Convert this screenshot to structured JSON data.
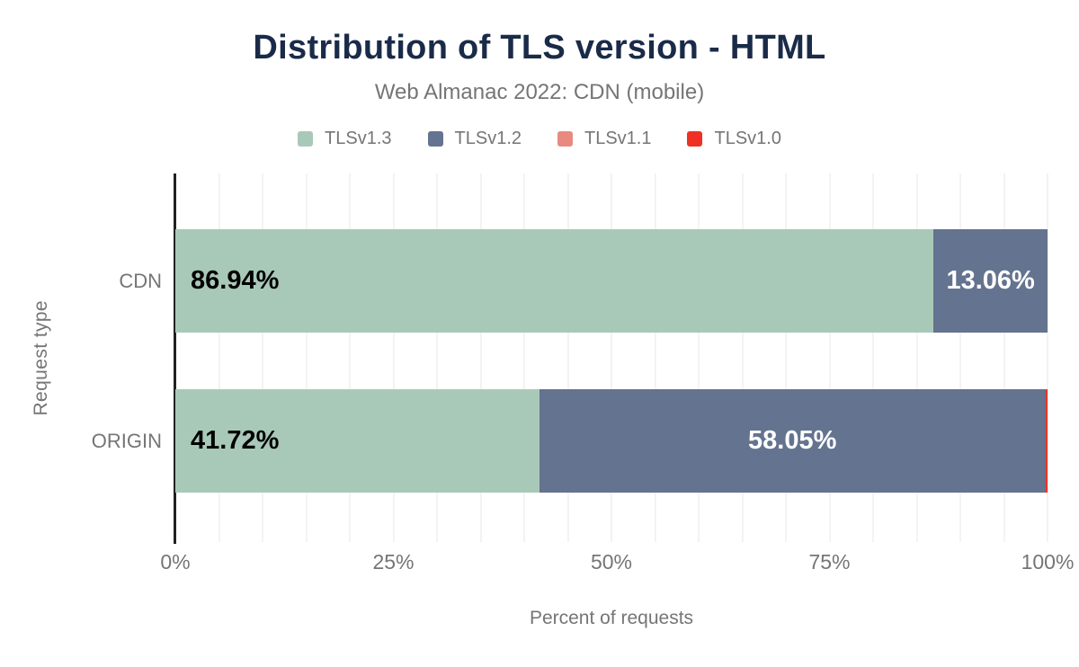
{
  "chart_data": {
    "type": "bar",
    "orientation": "horizontal",
    "stacked": true,
    "title": "Distribution of TLS version - HTML",
    "subtitle": "Web Almanac 2022: CDN (mobile)",
    "xlabel": "Percent of requests",
    "ylabel": "Request type",
    "xlim": [
      0,
      100
    ],
    "xticks": [
      "0%",
      "25%",
      "50%",
      "75%",
      "100%"
    ],
    "xtick_values": [
      0,
      25,
      50,
      75,
      100
    ],
    "grid": "minor vertical gridlines",
    "grid_interval_percent": 5,
    "legend_position": "top",
    "categories": [
      "CDN",
      "ORIGIN"
    ],
    "series": [
      {
        "name": "TLSv1.3",
        "color": "#a9c9b8",
        "values": [
          86.94,
          41.72
        ],
        "labels": [
          "86.94%",
          "41.72%"
        ],
        "label_color": "#000000",
        "label_align": "left"
      },
      {
        "name": "TLSv1.2",
        "color": "#64738f",
        "values": [
          13.06,
          58.05
        ],
        "labels": [
          "13.06%",
          "58.05%"
        ],
        "label_color": "#ffffff",
        "label_align": "center"
      },
      {
        "name": "TLSv1.1",
        "color": "#e98a80",
        "values": [
          0,
          0.03
        ],
        "labels": [
          "",
          ""
        ],
        "label_color": "#000000",
        "label_align": "center"
      },
      {
        "name": "TLSv1.0",
        "color": "#ee3124",
        "values": [
          0,
          0.2
        ],
        "labels": [
          "",
          ""
        ],
        "label_color": "#ffffff",
        "label_align": "center"
      }
    ]
  },
  "colors": {
    "title_text": "#1a2b49",
    "muted_text": "#757575",
    "axis_line": "#212121",
    "gridline": "#f3f3f3",
    "background": "#ffffff"
  }
}
